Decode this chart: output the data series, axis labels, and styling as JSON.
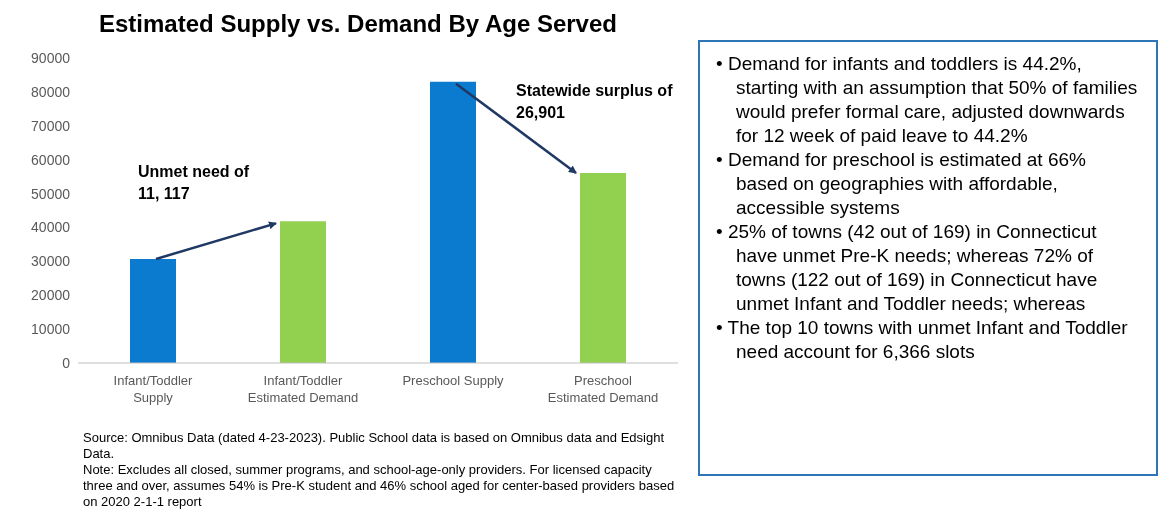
{
  "chart_data": {
    "type": "bar",
    "title": "Estimated Supply vs. Demand By Age Served",
    "categories": [
      "Infant/Toddler Supply",
      "Infant/Toddler Estimated Demand",
      "Preschool Supply",
      "Preschool Estimated Demand"
    ],
    "values": [
      30700,
      41800,
      83000,
      56100
    ],
    "colors": [
      "#0a7bcf",
      "#92d050",
      "#0a7bcf",
      "#92d050"
    ],
    "ylim": [
      0,
      90000
    ],
    "yticks": [
      0,
      10000,
      20000,
      30000,
      40000,
      50000,
      60000,
      70000,
      80000,
      90000
    ],
    "grid": false,
    "annotations": [
      "Unmet need of 11, 117",
      "Statewide surplus of 26,901",
      "Source:  Omnibus Data (dated 4-23-2023). Public School data is based on Omnibus data and Edsight Data.",
      "Note: Excludes all closed, summer programs, and school-age-only providers.  For licensed capacity three and over, assumes 54% is Pre-K student and 46% school aged for center-based providers based on 2020 2-1-1 report",
      "• Demand for infants and toddlers is 44.2%, starting with an assumption that 50% of families would prefer formal care, adjusted downwards for 12 week of paid leave to 44.2%",
      "• Demand for preschool is estimated at 66% based on geographies with affordable, accessible systems",
      "• 25% of towns (42 out of 169) in Connecticut have unmet Pre-K needs; whereas 72% of towns (122 out of 169) in Connecticut have unmet Infant and Toddler needs; whereas",
      "• The top 10 towns with unmet Infant and Toddler need account for 6,366 slots"
    ]
  }
}
